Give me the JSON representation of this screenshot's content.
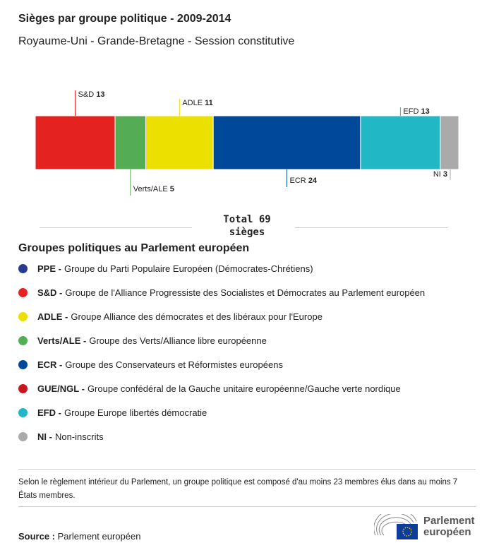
{
  "title": "Sièges par groupe politique - 2009-2014",
  "subtitle": "Royaume-Uni - Grande-Bretagne - Session constitutive",
  "chart_data": {
    "type": "bar",
    "orientation": "horizontal-stacked",
    "categories": [
      "S&D",
      "Verts/ALE",
      "ADLE",
      "ECR",
      "EFD",
      "NI"
    ],
    "values": [
      13,
      5,
      11,
      24,
      13,
      3
    ],
    "colors": [
      "#e42320",
      "#54ac55",
      "#ece000",
      "#00499a",
      "#21b7c4",
      "#aaaaaa"
    ],
    "label_side": [
      "top",
      "bottom",
      "top",
      "bottom",
      "top",
      "bottom"
    ],
    "total_label": "Total 69 sièges"
  },
  "legend": {
    "title": "Groupes politiques au Parlement européen",
    "items": [
      {
        "abbr": "PPE -",
        "desc": "Groupe du Parti Populaire Européen (Démocrates-Chrétiens)",
        "color": "#2a3b8f"
      },
      {
        "abbr": "S&D -",
        "desc": "Groupe de l'Alliance Progressiste des Socialistes et Démocrates au Parlement européen",
        "color": "#e42320"
      },
      {
        "abbr": "ADLE -",
        "desc": "Groupe Alliance des démocrates et des libéraux pour l'Europe",
        "color": "#ece000"
      },
      {
        "abbr": "Verts/ALE -",
        "desc": "Groupe des Verts/Alliance libre européenne",
        "color": "#54ac55"
      },
      {
        "abbr": "ECR -",
        "desc": "Groupe des Conservateurs et Réformistes européens",
        "color": "#00499a"
      },
      {
        "abbr": "GUE/NGL -",
        "desc": "Groupe confédéral de la Gauche unitaire européenne/Gauche verte nordique",
        "color": "#c7161e"
      },
      {
        "abbr": "EFD -",
        "desc": "Groupe Europe libertés démocratie",
        "color": "#21b7c4"
      },
      {
        "abbr": "NI -",
        "desc": "Non-inscrits",
        "color": "#aaaaaa"
      }
    ]
  },
  "note": "Selon le règlement intérieur du Parlement, un groupe politique est composé d'au moins 23 membres élus dans au moins 7 États membres.",
  "source": {
    "label": "Source :",
    "value": "Parlement européen"
  },
  "logo": {
    "line1": "Parlement",
    "line2": "européen"
  }
}
